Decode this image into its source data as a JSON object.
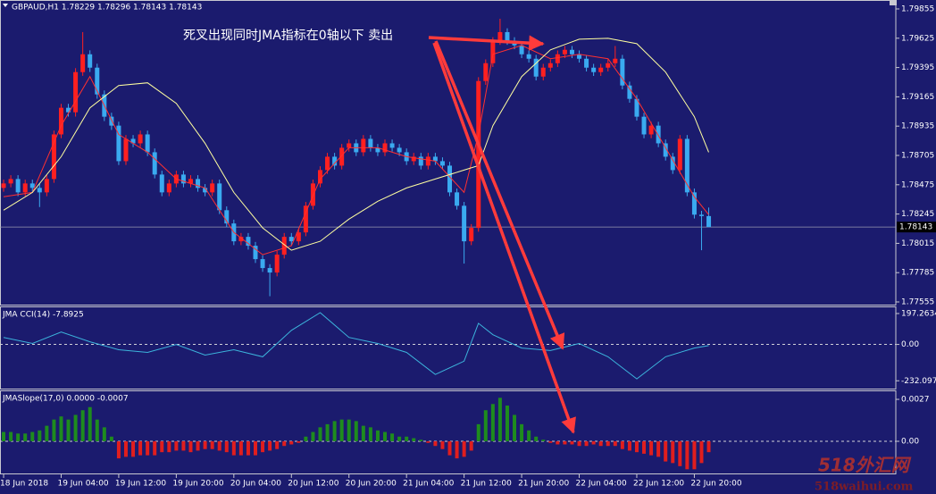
{
  "chart_data": [
    {
      "type": "candlestick",
      "title": "GBPAUD,H1  1.78229 1.78296 1.78143 1.78143",
      "annotation": "死叉出现同时JMA指标在0轴以下 卖出",
      "watermark": [
        "518外汇网",
        "518waihui.com"
      ],
      "up_color": "#ff2020",
      "down_color": "#3aaaf0",
      "xlim": [
        -0.5,
        124
      ],
      "ylim": [
        1.77534,
        1.79918
      ],
      "yticks": [
        1.79855,
        1.79625,
        1.79395,
        1.79165,
        1.78935,
        1.78705,
        1.78475,
        1.78245,
        1.78015,
        1.77785,
        1.77555
      ],
      "open": [
        1.7845,
        1.78485,
        1.7852,
        1.78415,
        1.78485,
        1.7845,
        1.78415,
        1.7852,
        1.7887,
        1.79079,
        1.79044,
        1.79359,
        1.79499,
        1.79394,
        1.79184,
        1.79009,
        1.78939,
        1.7866,
        1.78835,
        1.788,
        1.7887,
        1.7873,
        1.78555,
        1.78415,
        1.78485,
        1.78555,
        1.78485,
        1.7852,
        1.7845,
        1.78415,
        1.78485,
        1.78275,
        1.78171,
        1.78031,
        1.78066,
        1.77996,
        1.77891,
        1.77821,
        1.77786,
        1.77926,
        1.78066,
        1.78031,
        1.78101,
        1.7831,
        1.78485,
        1.7859,
        1.78695,
        1.78625,
        1.78765,
        1.788,
        1.7873,
        1.78835,
        1.78765,
        1.7873,
        1.788,
        1.78765,
        1.7873,
        1.7866,
        1.78695,
        1.78625,
        1.78695,
        1.7866,
        1.78625,
        1.78415,
        1.7831,
        1.78031,
        1.78136,
        1.79289,
        1.79429,
        1.79603,
        1.79673,
        1.79603,
        1.79569,
        1.79499,
        1.79464,
        1.79324,
        1.79394,
        1.79429,
        1.79499,
        1.79534,
        1.79499,
        1.79464,
        1.79394,
        1.79359,
        1.79394,
        1.79429,
        1.79464,
        1.79254,
        1.79149,
        1.79009,
        1.7887,
        1.78939,
        1.788,
        1.78695,
        1.7859,
        1.78835,
        1.78415,
        1.7824,
        1.78229
      ],
      "high": [
        1.78515,
        1.7855,
        1.7855,
        1.78515,
        1.78515,
        1.7848,
        1.7855,
        1.789,
        1.7911,
        1.7911,
        1.7939,
        1.79673,
        1.7953,
        1.79425,
        1.79215,
        1.7904,
        1.7897,
        1.78865,
        1.78865,
        1.789,
        1.789,
        1.7876,
        1.78585,
        1.78515,
        1.78585,
        1.78585,
        1.7855,
        1.7855,
        1.7848,
        1.78515,
        1.78515,
        1.78305,
        1.78201,
        1.78096,
        1.78096,
        1.78026,
        1.77921,
        1.77851,
        1.77956,
        1.78096,
        1.78096,
        1.78131,
        1.7834,
        1.78515,
        1.7862,
        1.78725,
        1.78725,
        1.78795,
        1.7883,
        1.7883,
        1.78865,
        1.78865,
        1.78795,
        1.7883,
        1.7883,
        1.78795,
        1.7876,
        1.78725,
        1.78725,
        1.78725,
        1.78725,
        1.7869,
        1.78655,
        1.78445,
        1.7834,
        1.78166,
        1.79319,
        1.79459,
        1.79633,
        1.79778,
        1.79703,
        1.79633,
        1.79599,
        1.79529,
        1.79494,
        1.79424,
        1.79459,
        1.79529,
        1.79564,
        1.79564,
        1.79529,
        1.79494,
        1.79424,
        1.79424,
        1.79459,
        1.79564,
        1.79494,
        1.79284,
        1.79179,
        1.79039,
        1.78969,
        1.78969,
        1.7883,
        1.78725,
        1.78865,
        1.78865,
        1.78445,
        1.7827,
        1.78296
      ],
      "low": [
        1.7842,
        1.78455,
        1.78385,
        1.78385,
        1.7842,
        1.783,
        1.78385,
        1.7849,
        1.7884,
        1.7901,
        1.7901,
        1.7933,
        1.7936,
        1.7915,
        1.78975,
        1.78905,
        1.7863,
        1.7863,
        1.7877,
        1.7877,
        1.787,
        1.78525,
        1.78385,
        1.78385,
        1.78455,
        1.78455,
        1.78455,
        1.7842,
        1.78385,
        1.78385,
        1.78245,
        1.78141,
        1.78001,
        1.78001,
        1.77966,
        1.77861,
        1.77791,
        1.776,
        1.77756,
        1.77896,
        1.78001,
        1.78001,
        1.78071,
        1.7828,
        1.78455,
        1.7856,
        1.78595,
        1.78595,
        1.78735,
        1.787,
        1.787,
        1.78735,
        1.787,
        1.787,
        1.78735,
        1.787,
        1.7863,
        1.7863,
        1.78595,
        1.78595,
        1.7863,
        1.78595,
        1.78385,
        1.7828,
        1.77856,
        1.78001,
        1.78106,
        1.79259,
        1.79399,
        1.79573,
        1.79573,
        1.79539,
        1.79469,
        1.79434,
        1.79294,
        1.79294,
        1.79364,
        1.79399,
        1.79469,
        1.79469,
        1.79434,
        1.79364,
        1.79329,
        1.79329,
        1.79364,
        1.79399,
        1.79224,
        1.79119,
        1.78979,
        1.7884,
        1.7884,
        1.7877,
        1.78665,
        1.7856,
        1.7856,
        1.78385,
        1.7821,
        1.77961,
        1.78143
      ],
      "close": [
        1.78485,
        1.7852,
        1.78415,
        1.78485,
        1.7845,
        1.78415,
        1.7852,
        1.7887,
        1.79079,
        1.79044,
        1.79359,
        1.79499,
        1.79394,
        1.79184,
        1.79009,
        1.78939,
        1.7866,
        1.78835,
        1.788,
        1.7887,
        1.7873,
        1.78555,
        1.78415,
        1.78485,
        1.78555,
        1.78485,
        1.7852,
        1.7845,
        1.78415,
        1.78485,
        1.78275,
        1.78171,
        1.78031,
        1.78066,
        1.77996,
        1.77891,
        1.77821,
        1.77786,
        1.77926,
        1.78066,
        1.78031,
        1.78101,
        1.7831,
        1.78485,
        1.7859,
        1.78695,
        1.78625,
        1.78765,
        1.788,
        1.7873,
        1.78835,
        1.78765,
        1.7873,
        1.788,
        1.78765,
        1.7873,
        1.7866,
        1.78695,
        1.78625,
        1.78695,
        1.7866,
        1.78625,
        1.78415,
        1.7831,
        1.78031,
        1.78136,
        1.79289,
        1.79429,
        1.79603,
        1.79673,
        1.79603,
        1.79569,
        1.79499,
        1.79464,
        1.79324,
        1.79394,
        1.79429,
        1.79499,
        1.79534,
        1.79499,
        1.79464,
        1.79394,
        1.79359,
        1.79394,
        1.79429,
        1.79464,
        1.79254,
        1.79149,
        1.79009,
        1.7887,
        1.78939,
        1.788,
        1.78695,
        1.7859,
        1.78835,
        1.78415,
        1.7824,
        1.78229,
        1.78143
      ],
      "lines": [
        {
          "color": "#ff3030",
          "x": [
            0,
            4,
            8,
            12,
            16,
            20,
            24,
            28,
            32,
            36,
            40,
            44,
            48,
            52,
            56,
            60,
            64,
            66,
            68,
            72,
            76,
            80,
            84,
            88,
            92,
            96,
            98
          ],
          "values": [
            1.7838,
            1.78415,
            1.78939,
            1.79324,
            1.7887,
            1.7873,
            1.7852,
            1.7845,
            1.78101,
            1.77926,
            1.77996,
            1.7852,
            1.78765,
            1.78765,
            1.78695,
            1.7866,
            1.78415,
            1.7887,
            1.79499,
            1.79569,
            1.79464,
            1.79499,
            1.79464,
            1.79149,
            1.78765,
            1.7838,
            1.7824
          ]
        },
        {
          "color": "#ffffa0",
          "x": [
            0,
            4,
            8,
            12,
            16,
            20,
            24,
            28,
            32,
            36,
            40,
            44,
            48,
            52,
            56,
            60,
            64,
            66,
            68,
            72,
            76,
            80,
            84,
            88,
            92,
            96,
            98
          ],
          "values": [
            1.78275,
            1.78415,
            1.78695,
            1.79079,
            1.79254,
            1.79275,
            1.79114,
            1.788,
            1.78415,
            1.78136,
            1.77961,
            1.78031,
            1.78205,
            1.78345,
            1.7845,
            1.7852,
            1.7859,
            1.78625,
            1.78939,
            1.79324,
            1.79534,
            1.79617,
            1.79624,
            1.79582,
            1.79359,
            1.79009,
            1.7873
          ]
        }
      ]
    },
    {
      "type": "line",
      "title": "JMA CCI(14) -7.8925",
      "color": "#3cb4dc",
      "xlim": [
        -0.5,
        124
      ],
      "ylim": [
        -282,
        237
      ],
      "yticks": [
        197.2634,
        {
          "value": 0,
          "label": "0.00"
        },
        -232.0978
      ],
      "x": [
        0,
        4,
        8,
        12,
        16,
        20,
        24,
        28,
        32,
        36,
        40,
        44,
        48,
        52,
        56,
        60,
        64,
        66,
        68,
        72,
        76,
        80,
        84,
        88,
        92,
        96,
        98
      ],
      "values": [
        45,
        6,
        79,
        17,
        -34,
        -51,
        0,
        -68,
        -34,
        -79,
        90,
        203,
        45,
        6,
        -51,
        -192,
        -107,
        135,
        62,
        -23,
        -39,
        6,
        -79,
        -220,
        -79,
        -23,
        -7.8925
      ]
    },
    {
      "type": "bar",
      "title": "JMASlope(17,0) 0.0000 -0.0007",
      "positive_color": "#1e8c1e",
      "negative_color": "#e01e1e",
      "xlim": [
        -0.5,
        124
      ],
      "ylim": [
        -0.00207,
        0.00322
      ],
      "yticks": [
        0.0027,
        {
          "value": 0,
          "label": "0.00"
        }
      ],
      "xticks": [
        {
          "value": 0,
          "label": "18 Jun 2018"
        },
        {
          "value": 8,
          "label": "19 Jun 04:00"
        },
        {
          "value": 16,
          "label": "19 Jun 12:00"
        },
        {
          "value": 24,
          "label": "19 Jun 20:00"
        },
        {
          "value": 32,
          "label": "20 Jun 04:00"
        },
        {
          "value": 40,
          "label": "20 Jun 12:00"
        },
        {
          "value": 48,
          "label": "20 Jun 20:00"
        },
        {
          "value": 56,
          "label": "21 Jun 04:00"
        },
        {
          "value": 64,
          "label": "21 Jun 12:00"
        },
        {
          "value": 72,
          "label": "21 Jun 20:00"
        },
        {
          "value": 80,
          "label": "22 Jun 04:00"
        },
        {
          "value": 88,
          "label": "22 Jun 12:00"
        },
        {
          "value": 96,
          "label": "22 Jun 20:00"
        }
      ],
      "values": [
        0.0006,
        0.0006,
        0.0005,
        0.0005,
        0.0006,
        0.0007,
        0.001,
        0.0014,
        0.0016,
        0.0014,
        0.0017,
        0.002,
        0.0022,
        0.0014,
        0.0009,
        0.0003,
        -0.0011,
        -0.001,
        -0.001,
        -0.0009,
        -0.0009,
        -0.0009,
        -0.0007,
        -0.0007,
        -0.0006,
        -0.0006,
        -0.0007,
        -0.0006,
        -0.0005,
        -0.0005,
        -0.0006,
        -0.0007,
        -0.0009,
        -0.0009,
        -0.0009,
        -0.0009,
        -0.0007,
        -0.0006,
        -0.0005,
        -0.0003,
        -0.0002,
        -0.0001,
        0.0003,
        0.0006,
        0.0009,
        0.0011,
        0.0013,
        0.0014,
        0.0014,
        0.0013,
        0.001,
        0.0009,
        0.0007,
        0.0006,
        0.0005,
        0.0003,
        0.0003,
        0.0002,
        0.0001,
        -0.0001,
        -0.0003,
        -0.0005,
        -0.0009,
        -0.0011,
        -0.001,
        -0.0006,
        0.0011,
        0.002,
        0.0024,
        0.0028,
        0.0023,
        0.0017,
        0.0011,
        0.0007,
        0.0003,
        0.0001,
        -0.0001,
        -0.0002,
        -0.0002,
        -0.0002,
        -0.0003,
        -0.0003,
        -0.0002,
        -0.0003,
        -0.0003,
        -0.0003,
        -0.0005,
        -0.0006,
        -0.0007,
        -0.0008,
        -0.0009,
        -0.001,
        -0.0013,
        -0.0014,
        -0.0016,
        -0.0018,
        -0.0018,
        -0.0014,
        -0.0007
      ]
    }
  ]
}
